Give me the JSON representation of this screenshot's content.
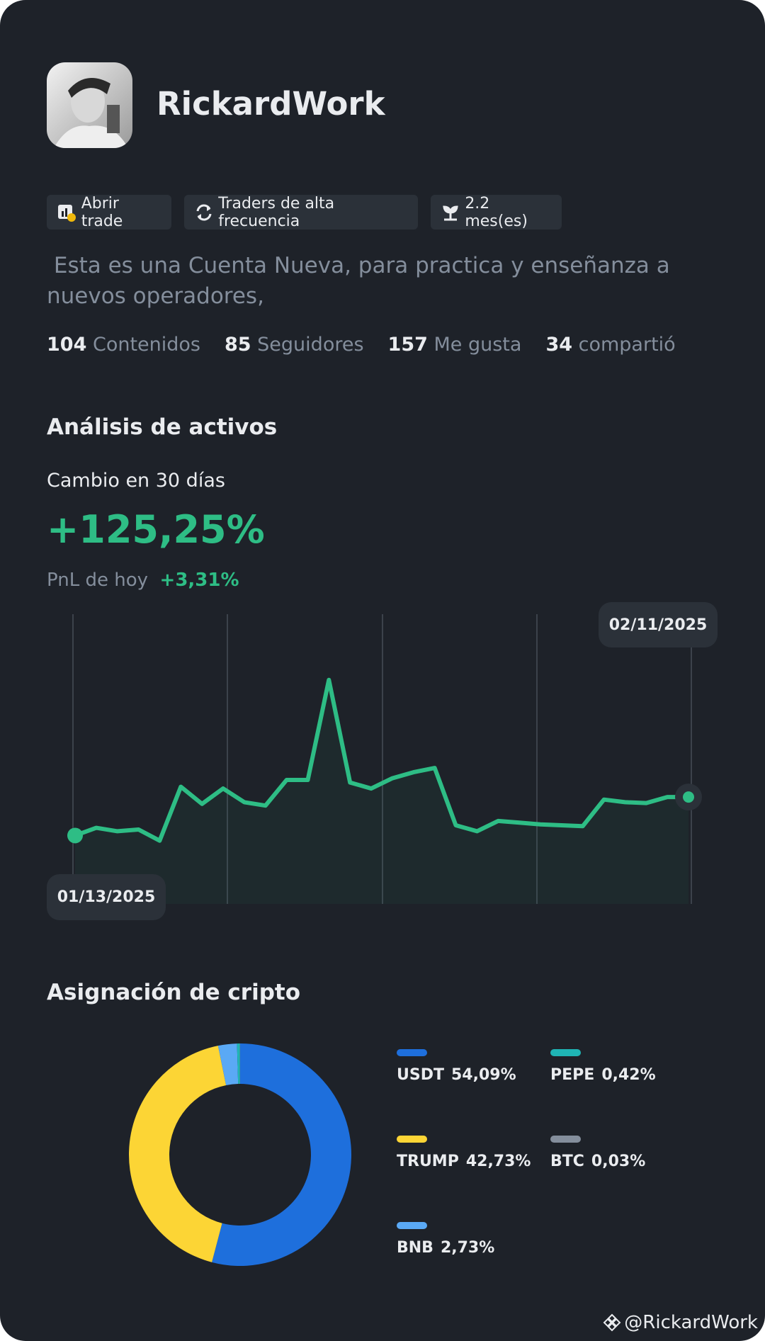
{
  "profile": {
    "name": "RickardWork",
    "tags": [
      "Abrir trade",
      "Traders de alta frecuencia",
      "2.2 mes(es)"
    ],
    "bio": " Esta es una Cuenta Nueva, para practica y enseñanza a nuevos operadores,",
    "stats": [
      {
        "value": 104,
        "label": "Contenidos"
      },
      {
        "value": 85,
        "label": "Seguidores"
      },
      {
        "value": 157,
        "label": "Me gusta"
      },
      {
        "value": 34,
        "label": "compartió"
      }
    ]
  },
  "sections": {
    "analysis": "Análisis de activos",
    "allocation": "Asignación de cripto"
  },
  "chart_data": [
    {
      "type": "line",
      "title": "Cambio en 30 días",
      "headline": "+125,25%",
      "today_label": "PnL de hoy",
      "today_value": "+3,31%",
      "start_date": "01/13/2025",
      "end_date": "02/11/2025",
      "color": "#2ebd85",
      "values": [
        80,
        89,
        85,
        87,
        74,
        137,
        117,
        135,
        119,
        115,
        145,
        145,
        262,
        142,
        135,
        147,
        154,
        159,
        92,
        85,
        97,
        95,
        93,
        92,
        91,
        122,
        119,
        118,
        125,
        125
      ]
    },
    {
      "type": "donut",
      "categories": [
        "USDT",
        "TRUMP",
        "BNB",
        "PEPE",
        "BTC"
      ],
      "values": [
        54.09,
        42.73,
        2.73,
        0.42,
        0.03
      ],
      "value_labels": [
        "54,09%",
        "42,73%",
        "2,73%",
        "0,42%",
        "0,03%"
      ],
      "colors": [
        "#1e6fdc",
        "#fcd535",
        "#5aa9f5",
        "#1fb5b5",
        "#848e9c"
      ]
    }
  ],
  "watermark": "@RickardWork"
}
